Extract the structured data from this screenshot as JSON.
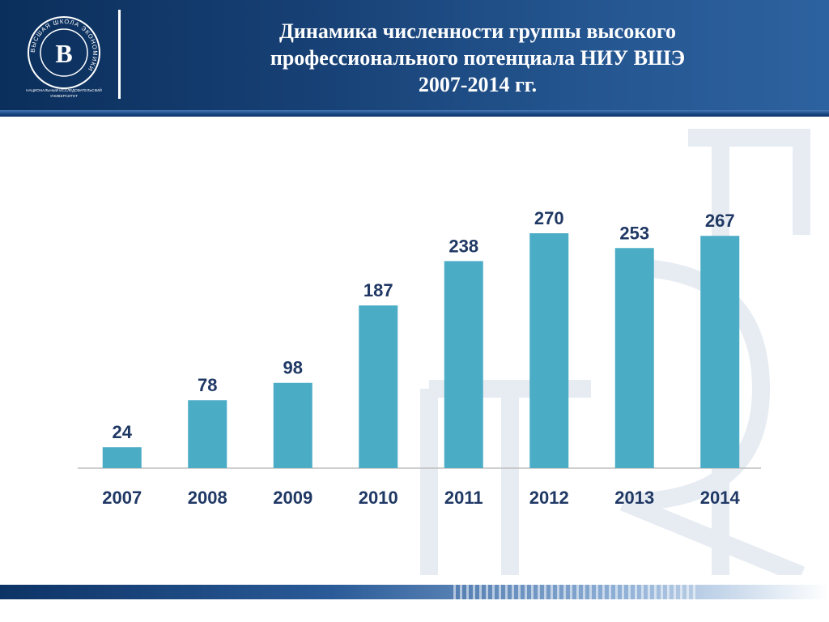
{
  "slide": {
    "title_lines": [
      "Динамика численности группы высокого",
      "профессионального потенциала НИУ ВШЭ",
      "2007-2014 гг."
    ],
    "logo": {
      "ring_text": "ВЫСШАЯ ШКОЛА ЭКОНОМИКИ",
      "monogram": "В",
      "caption_line1": "НАЦИОНАЛЬНЫЙ ИССЛЕДОВАТЕЛЬСКИЙ",
      "caption_line2": "УНИВЕРСИТЕТ"
    },
    "colors": {
      "header_dark": "#0b2f5c",
      "header_light": "#2d62a0",
      "bar": "#4bacc6",
      "label": "#1f3864",
      "axis": "#bfbfbf"
    }
  },
  "chart_data": {
    "type": "bar",
    "categories": [
      "2007",
      "2008",
      "2009",
      "2010",
      "2011",
      "2012",
      "2013",
      "2014"
    ],
    "values": [
      24,
      78,
      98,
      187,
      238,
      270,
      253,
      267
    ],
    "title": "Динамика численности группы высокого профессионального потенциала НИУ ВШЭ 2007-2014 гг.",
    "xlabel": "",
    "ylabel": "",
    "ylim": [
      0,
      300
    ],
    "data_labels": true,
    "grid": false,
    "legend": "none"
  }
}
